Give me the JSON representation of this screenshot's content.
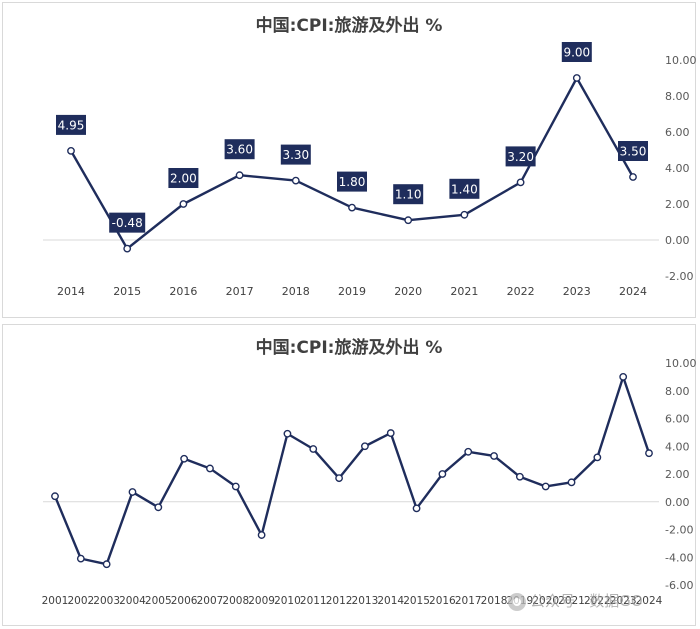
{
  "chart_data": [
    {
      "type": "line",
      "title": "中国:CPI:旅游及外出 %",
      "x": [
        "2014",
        "2015",
        "2016",
        "2017",
        "2018",
        "2019",
        "2020",
        "2021",
        "2022",
        "2023",
        "2024"
      ],
      "values": [
        4.95,
        -0.48,
        2.0,
        3.6,
        3.3,
        1.8,
        1.1,
        1.4,
        3.2,
        9.0,
        3.5
      ],
      "data_labels": [
        "4.95",
        "-0.48",
        "2.00",
        "3.60",
        "3.30",
        "1.80",
        "1.10",
        "1.40",
        "3.20",
        "9.00",
        "3.50"
      ],
      "y_ticks": [
        "10.00",
        "8.00",
        "6.00",
        "4.00",
        "2.00",
        "0.00",
        "-2.00"
      ],
      "ylim": [
        -2,
        10
      ],
      "y_axis_side": "right",
      "grid": false,
      "line_color": "#1f2d5c",
      "label_bg_color": "#1f2d5c",
      "label_text_color": "#ffffff"
    },
    {
      "type": "line",
      "title": "中国:CPI:旅游及外出 %",
      "x": [
        "2001",
        "2002",
        "2003",
        "2004",
        "2005",
        "2006",
        "2007",
        "2008",
        "2009",
        "2010",
        "2011",
        "2012",
        "2013",
        "2014",
        "2015",
        "2016",
        "2017",
        "2018",
        "2019",
        "2020",
        "2021",
        "2022",
        "2023",
        "2024"
      ],
      "values": [
        0.4,
        -4.1,
        -4.5,
        0.7,
        -0.4,
        3.1,
        2.4,
        1.1,
        -2.4,
        4.9,
        3.8,
        1.7,
        4.0,
        4.95,
        -0.48,
        2.0,
        3.6,
        3.3,
        1.8,
        1.1,
        1.4,
        3.2,
        9.0,
        3.5
      ],
      "y_ticks": [
        "10.00",
        "8.00",
        "6.00",
        "4.00",
        "2.00",
        "0.00",
        "-2.00",
        "-4.00",
        "-6.00"
      ],
      "ylim": [
        -6,
        10
      ],
      "y_axis_side": "right",
      "grid": false,
      "line_color": "#1f2d5c"
    }
  ],
  "watermark": {
    "text": "公众号 · 数据GO",
    "icon": "wechat-icon"
  }
}
